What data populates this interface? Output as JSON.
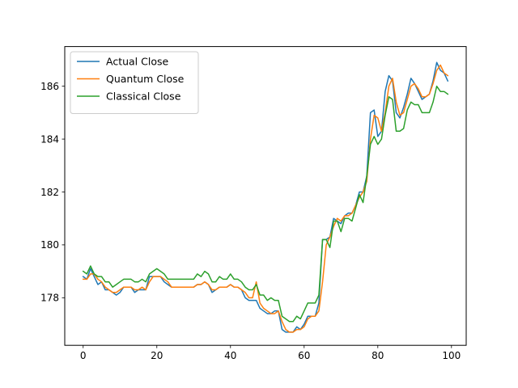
{
  "chart_data": {
    "type": "line",
    "title": "",
    "xlabel": "",
    "ylabel": "",
    "xlim": [
      -5,
      104
    ],
    "ylim": [
      176.2,
      187.5
    ],
    "x_ticks": [
      0,
      20,
      40,
      60,
      80,
      100
    ],
    "y_ticks": [
      178,
      180,
      182,
      184,
      186
    ],
    "grid": false,
    "legend_position": "top-left",
    "x": [
      0,
      1,
      2,
      3,
      4,
      5,
      6,
      7,
      8,
      9,
      10,
      11,
      12,
      13,
      14,
      15,
      16,
      17,
      18,
      19,
      20,
      21,
      22,
      23,
      24,
      25,
      26,
      27,
      28,
      29,
      30,
      31,
      32,
      33,
      34,
      35,
      36,
      37,
      38,
      39,
      40,
      41,
      42,
      43,
      44,
      45,
      46,
      47,
      48,
      49,
      50,
      51,
      52,
      53,
      54,
      55,
      56,
      57,
      58,
      59,
      60,
      61,
      62,
      63,
      64,
      65,
      66,
      67,
      68,
      69,
      70,
      71,
      72,
      73,
      74,
      75,
      76,
      77,
      78,
      79,
      80,
      81,
      82,
      83,
      84,
      85,
      86,
      87,
      88,
      89,
      90,
      91,
      92,
      93,
      94,
      95,
      96,
      97,
      98,
      99
    ],
    "series": [
      {
        "name": "Actual Close",
        "color": "#1f77b4",
        "values": [
          178.8,
          178.7,
          179.1,
          178.8,
          178.5,
          178.6,
          178.3,
          178.3,
          178.2,
          178.1,
          178.2,
          178.4,
          178.4,
          178.4,
          178.2,
          178.3,
          178.3,
          178.3,
          178.8,
          178.8,
          178.8,
          178.8,
          178.6,
          178.5,
          178.4,
          178.4,
          178.4,
          178.4,
          178.4,
          178.4,
          178.4,
          178.5,
          178.5,
          178.6,
          178.5,
          178.2,
          178.3,
          178.4,
          178.4,
          178.4,
          178.5,
          178.4,
          178.4,
          178.3,
          178.0,
          177.9,
          177.9,
          177.9,
          177.6,
          177.5,
          177.4,
          177.4,
          177.5,
          177.5,
          176.8,
          176.7,
          176.7,
          176.7,
          176.9,
          176.8,
          177.0,
          177.3,
          177.3,
          177.3,
          177.8,
          180.2,
          180.2,
          180.3,
          181.0,
          180.9,
          180.8,
          181.1,
          181.2,
          181.2,
          181.5,
          182.0,
          182.0,
          182.6,
          185.0,
          185.1,
          184.1,
          184.3,
          185.8,
          186.4,
          186.2,
          185.0,
          184.8,
          185.2,
          185.7,
          186.3,
          186.1,
          185.8,
          185.5,
          185.6,
          185.7,
          186.2,
          186.9,
          186.6,
          186.5,
          186.2
        ]
      },
      {
        "name": "Quantum Close",
        "color": "#ff7f0e",
        "values": [
          178.7,
          178.7,
          178.9,
          178.9,
          178.7,
          178.6,
          178.4,
          178.3,
          178.2,
          178.2,
          178.3,
          178.4,
          178.4,
          178.4,
          178.3,
          178.3,
          178.4,
          178.3,
          178.6,
          178.8,
          178.8,
          178.8,
          178.7,
          178.6,
          178.4,
          178.4,
          178.4,
          178.4,
          178.4,
          178.4,
          178.4,
          178.5,
          178.5,
          178.6,
          178.5,
          178.3,
          178.3,
          178.4,
          178.4,
          178.4,
          178.5,
          178.4,
          178.4,
          178.3,
          178.2,
          178.0,
          178.0,
          178.6,
          177.8,
          177.6,
          177.5,
          177.4,
          177.4,
          177.5,
          177.1,
          176.8,
          176.7,
          176.7,
          176.8,
          176.8,
          176.9,
          177.2,
          177.3,
          177.3,
          177.5,
          178.6,
          180.0,
          180.3,
          180.7,
          181.0,
          180.9,
          181.1,
          181.1,
          181.2,
          181.5,
          181.8,
          182.0,
          182.4,
          184.0,
          184.9,
          184.8,
          184.3,
          185.0,
          186.0,
          186.3,
          185.4,
          184.9,
          185.0,
          185.5,
          186.0,
          186.1,
          185.9,
          185.6,
          185.6,
          185.7,
          186.1,
          186.6,
          186.8,
          186.5,
          186.4
        ]
      },
      {
        "name": "Classical Close",
        "color": "#2ca02c",
        "values": [
          179.0,
          178.9,
          179.2,
          178.9,
          178.8,
          178.8,
          178.6,
          178.6,
          178.4,
          178.5,
          178.6,
          178.7,
          178.7,
          178.7,
          178.6,
          178.6,
          178.7,
          178.6,
          178.9,
          179.0,
          179.1,
          179.0,
          178.9,
          178.7,
          178.7,
          178.7,
          178.7,
          178.7,
          178.7,
          178.7,
          178.7,
          178.9,
          178.8,
          179.0,
          178.9,
          178.6,
          178.6,
          178.8,
          178.7,
          178.7,
          178.9,
          178.7,
          178.7,
          178.6,
          178.4,
          178.3,
          178.3,
          178.5,
          178.1,
          178.1,
          177.9,
          178.0,
          177.9,
          177.9,
          177.3,
          177.2,
          177.1,
          177.1,
          177.3,
          177.2,
          177.5,
          177.8,
          177.8,
          177.8,
          178.1,
          180.2,
          180.2,
          179.9,
          180.9,
          180.9,
          180.5,
          181.0,
          181.0,
          180.9,
          181.4,
          181.9,
          181.6,
          182.6,
          183.8,
          184.1,
          183.8,
          184.0,
          184.9,
          185.6,
          185.5,
          184.3,
          184.3,
          184.4,
          185.1,
          185.4,
          185.3,
          185.3,
          185.0,
          185.0,
          185.0,
          185.4,
          186.0,
          185.8,
          185.8,
          185.7
        ]
      }
    ]
  }
}
